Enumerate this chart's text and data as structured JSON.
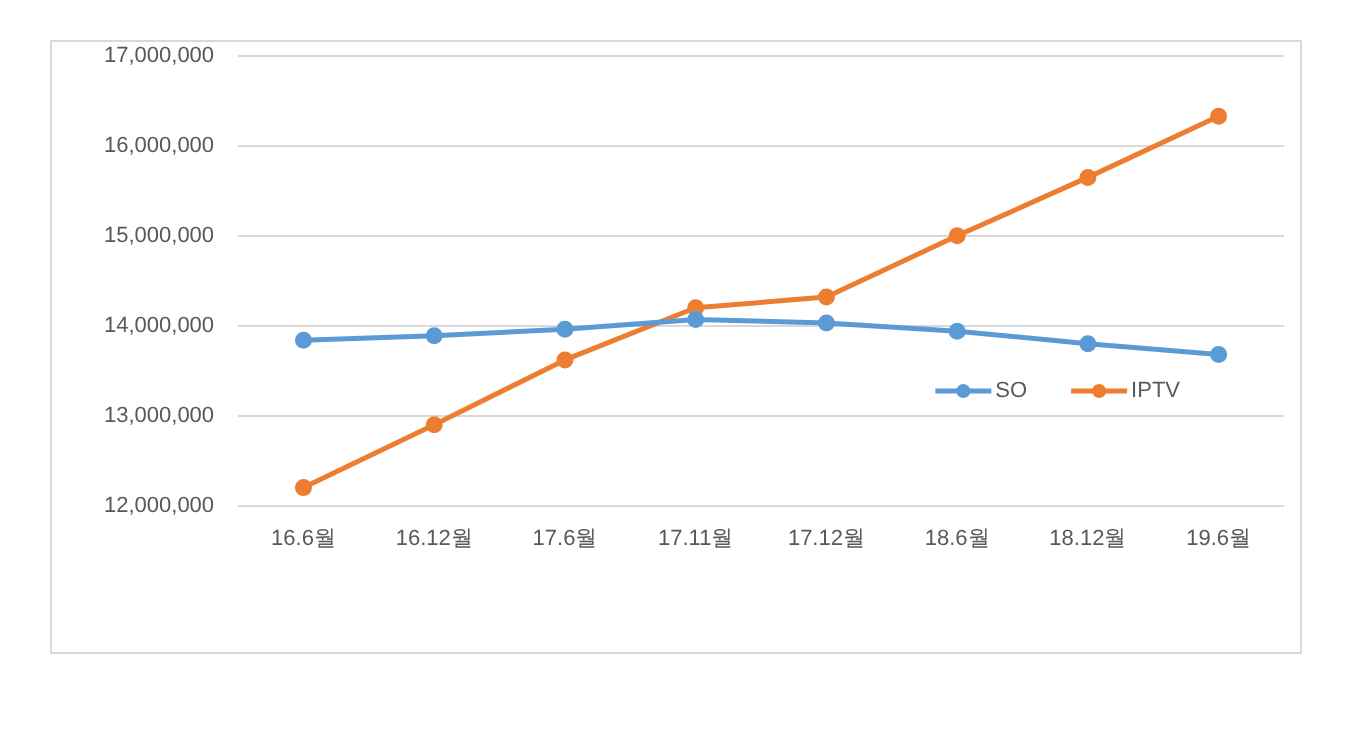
{
  "chart_data": {
    "type": "line",
    "categories": [
      "16.6월",
      "16.12월",
      "17.6월",
      "17.11월",
      "17.12월",
      "18.6월",
      "18.12월",
      "19.6월"
    ],
    "series": [
      {
        "name": "SO",
        "color": "#5b9bd5",
        "values": [
          13840000,
          13890000,
          13960000,
          14070000,
          14030000,
          13940000,
          13800000,
          13680000
        ]
      },
      {
        "name": "IPTV",
        "color": "#ed7d31",
        "values": [
          12200000,
          12900000,
          13620000,
          14200000,
          14320000,
          15000000,
          15650000,
          16330000
        ]
      }
    ],
    "ylim": [
      12000000,
      17000000
    ],
    "yticks": [
      {
        "value": 12000000,
        "label": "12,000,000"
      },
      {
        "value": 13000000,
        "label": "13,000,000"
      },
      {
        "value": 14000000,
        "label": "14,000,000"
      },
      {
        "value": 15000000,
        "label": "15,000,000"
      },
      {
        "value": 16000000,
        "label": "16,000,000"
      },
      {
        "value": 17000000,
        "label": "17,000,000"
      }
    ],
    "grid": "y",
    "legend": "bottom right",
    "marker": "circle",
    "line_style": "solid"
  }
}
